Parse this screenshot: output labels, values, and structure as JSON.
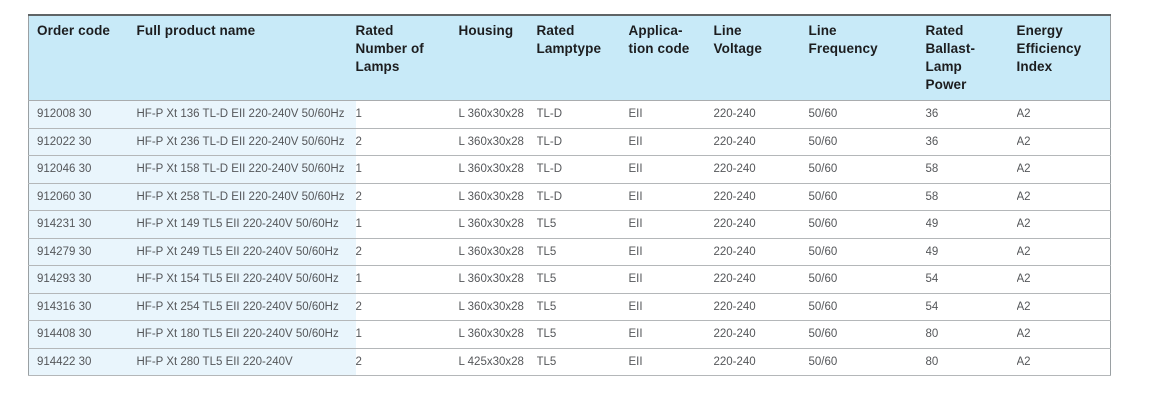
{
  "colors": {
    "header_background": "#c8eaf8",
    "row_highlight_background": "#e9f5fc",
    "header_text": "#1c1d1f",
    "body_text": "#55575a",
    "grid_line": "#b4b7b9",
    "outer_border": "#9aa0a3"
  },
  "table": {
    "columns": [
      {
        "label": "Order code"
      },
      {
        "label": "Full product name"
      },
      {
        "label": "Rated\nNumber of\nLamps"
      },
      {
        "label": "Housing"
      },
      {
        "label": "Rated\nLamptype"
      },
      {
        "label": "Applica-\ntion code"
      },
      {
        "label": "Line\nVoltage"
      },
      {
        "label": "Line\nFrequency"
      },
      {
        "label": "Rated\nBallast-\nLamp\nPower"
      },
      {
        "label": "Energy\nEfficiency\nIndex"
      }
    ],
    "rows": [
      [
        "912008 30",
        "HF-P Xt 136 TL-D EII 220-240V 50/60Hz",
        "1",
        "L 360x30x28",
        "TL-D",
        "EII",
        "220-240",
        "50/60",
        "36",
        "A2"
      ],
      [
        "912022 30",
        "HF-P Xt 236 TL-D EII 220-240V 50/60Hz",
        "2",
        "L 360x30x28",
        "TL-D",
        "EII",
        "220-240",
        "50/60",
        "36",
        "A2"
      ],
      [
        "912046 30",
        "HF-P Xt 158 TL-D EII 220-240V 50/60Hz",
        "1",
        "L 360x30x28",
        "TL-D",
        "EII",
        "220-240",
        "50/60",
        "58",
        "A2"
      ],
      [
        "912060 30",
        "HF-P Xt 258 TL-D EII 220-240V 50/60Hz",
        "2",
        "L 360x30x28",
        "TL-D",
        "EII",
        "220-240",
        "50/60",
        "58",
        "A2"
      ],
      [
        "914231 30",
        "HF-P Xt 149 TL5 EII 220-240V 50/60Hz",
        "1",
        "L 360x30x28",
        "TL5",
        "EII",
        "220-240",
        "50/60",
        "49",
        "A2"
      ],
      [
        "914279 30",
        "HF-P Xt 249 TL5 EII 220-240V 50/60Hz",
        "2",
        "L 360x30x28",
        "TL5",
        "EII",
        "220-240",
        "50/60",
        "49",
        "A2"
      ],
      [
        "914293 30",
        "HF-P Xt 154 TL5 EII 220-240V 50/60Hz",
        "1",
        "L 360x30x28",
        "TL5",
        "EII",
        "220-240",
        "50/60",
        "54",
        "A2"
      ],
      [
        "914316 30",
        "HF-P Xt 254 TL5 EII 220-240V 50/60Hz",
        "2",
        "L 360x30x28",
        "TL5",
        "EII",
        "220-240",
        "50/60",
        "54",
        "A2"
      ],
      [
        "914408 30",
        "HF-P Xt 180 TL5 EII 220-240V 50/60Hz",
        "1",
        "L 360x30x28",
        "TL5",
        "EII",
        "220-240",
        "50/60",
        "80",
        "A2"
      ],
      [
        "914422 30",
        "HF-P Xt 280 TL5 EII 220-240V",
        "2",
        "L 425x30x28",
        "TL5",
        "EII",
        "220-240",
        "50/60",
        "80",
        "A2"
      ]
    ]
  }
}
